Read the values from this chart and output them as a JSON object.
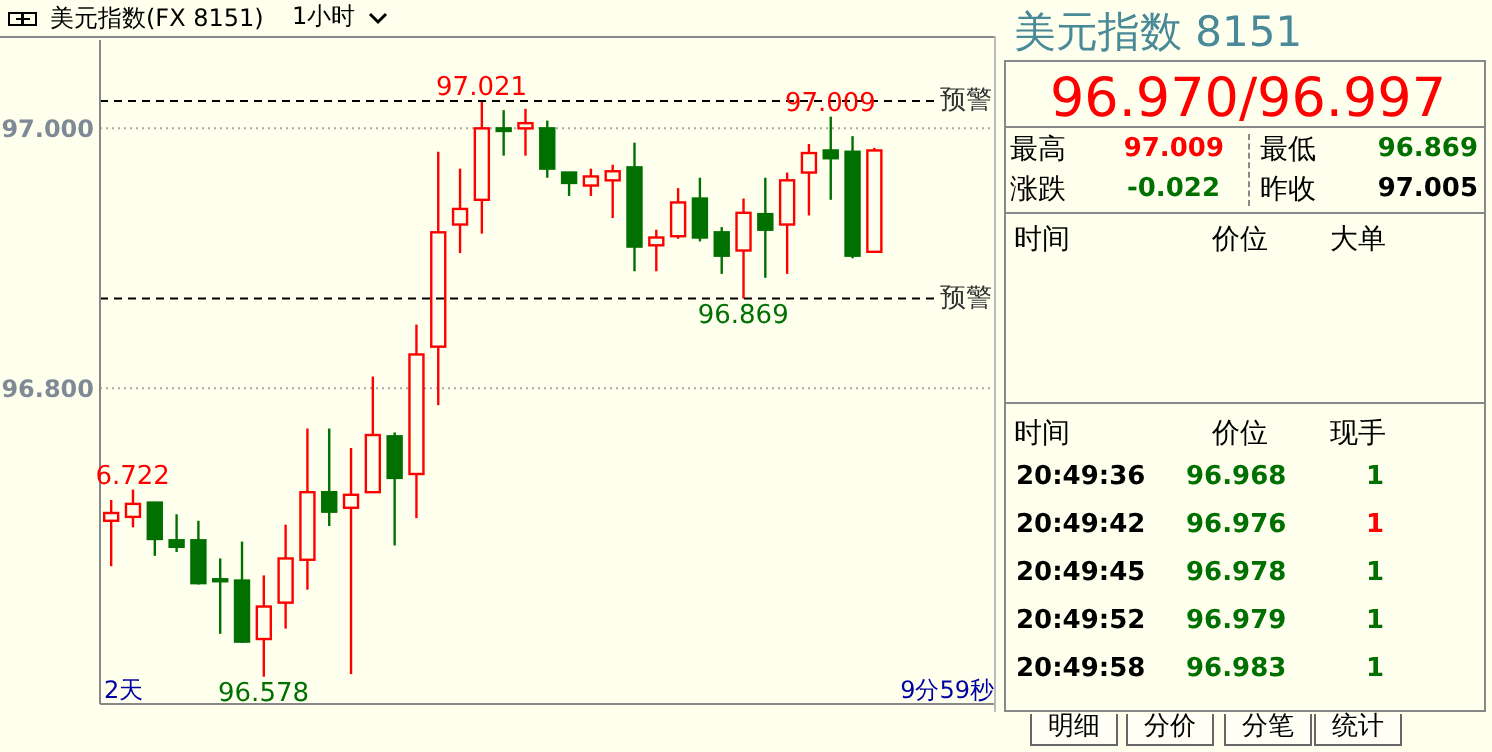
{
  "chart_data": {
    "type": "candlestick",
    "title": "美元指数(FX 8151)",
    "categories": [
      null,
      null,
      null,
      null,
      null,
      null,
      null,
      null,
      null,
      null,
      null,
      null,
      null,
      null,
      null,
      null,
      null,
      null,
      null,
      null,
      null,
      null,
      null,
      null,
      null,
      null,
      null,
      null,
      null,
      null,
      null,
      null,
      null,
      null,
      null,
      null,
      null,
      null,
      null,
      null,
      null
    ],
    "ohlc": [
      [
        96.698,
        96.714,
        96.663,
        96.704
      ],
      [
        96.701,
        96.722,
        96.693,
        96.711
      ],
      [
        96.712,
        96.712,
        96.671,
        96.684
      ],
      [
        96.683,
        96.703,
        96.674,
        96.678
      ],
      [
        96.683,
        96.698,
        96.649,
        96.65
      ],
      [
        96.653,
        96.669,
        96.611,
        96.652
      ],
      [
        96.652,
        96.682,
        96.604,
        96.605
      ],
      [
        96.607,
        96.656,
        96.578,
        96.632
      ],
      [
        96.635,
        96.695,
        96.615,
        96.669
      ],
      [
        96.668,
        96.769,
        96.645,
        96.72
      ],
      [
        96.72,
        96.769,
        96.694,
        96.705
      ],
      [
        96.708,
        96.754,
        96.58,
        96.718
      ],
      [
        96.72,
        96.809,
        96.72,
        96.764
      ],
      [
        96.763,
        96.766,
        96.679,
        96.731
      ],
      [
        96.734,
        96.849,
        96.7,
        96.826
      ],
      [
        96.832,
        96.982,
        96.787,
        96.92
      ],
      [
        96.926,
        96.969,
        96.904,
        96.938
      ],
      [
        96.945,
        97.021,
        96.919,
        97.0
      ],
      [
        97.0,
        97.014,
        96.979,
        96.998
      ],
      [
        97.0,
        97.015,
        96.979,
        97.004
      ],
      [
        97.0,
        97.006,
        96.962,
        96.969
      ],
      [
        96.966,
        96.966,
        96.948,
        96.958
      ],
      [
        96.956,
        96.969,
        96.948,
        96.963
      ],
      [
        96.96,
        96.972,
        96.931,
        96.967
      ],
      [
        96.97,
        96.989,
        96.89,
        96.909
      ],
      [
        96.91,
        96.922,
        96.89,
        96.916
      ],
      [
        96.917,
        96.954,
        96.915,
        96.943
      ],
      [
        96.946,
        96.962,
        96.913,
        96.916
      ],
      [
        96.92,
        96.924,
        96.888,
        96.902
      ],
      [
        96.906,
        96.946,
        96.869,
        96.935
      ],
      [
        96.934,
        96.962,
        96.885,
        96.922
      ],
      [
        96.926,
        96.966,
        96.888,
        96.96
      ],
      [
        96.966,
        96.988,
        96.933,
        96.981
      ],
      [
        96.983,
        97.009,
        96.945,
        96.977
      ],
      [
        96.982,
        96.994,
        96.9,
        96.902
      ],
      [
        96.905,
        96.985,
        96.905,
        96.983
      ],
      null,
      null,
      null,
      null,
      null
    ],
    "colors": [
      "#ff0000",
      "#ff0000",
      "#007000",
      "#007000",
      "#007000",
      "#007000",
      "#007000",
      "#ff0000",
      "#ff0000",
      "#ff0000",
      "#007000",
      "#ff0000",
      "#ff0000",
      "#007000",
      "#ff0000",
      "#ff0000",
      "#ff0000",
      "#ff0000",
      "#007000",
      "#ff0000",
      "#007000",
      "#007000",
      "#ff0000",
      "#ff0000",
      "#007000",
      "#ff0000",
      "#ff0000",
      "#007000",
      "#007000",
      "#ff0000",
      "#007000",
      "#ff0000",
      "#ff0000",
      "#007000",
      "#007000",
      "#ff0000",
      null,
      null,
      null,
      null,
      null
    ],
    "ylim": [
      96.557,
      97.068
    ],
    "yticks": [
      {
        "value": 96.8,
        "label": "96.800"
      },
      {
        "value": 97,
        "label": "97.000"
      }
    ],
    "grid": "y",
    "ref_lines": [
      {
        "axis": "y",
        "value": 97.021,
        "label": "预警",
        "line_style": "dashed",
        "color": "#000000"
      },
      {
        "axis": "y",
        "value": 96.869,
        "label": "预警",
        "line_style": "dashed",
        "color": "#000000"
      }
    ],
    "annotations": [
      "1小时",
      "2天",
      "9分59秒",
      "美元指数 8151",
      "96.970/96.997",
      "最高",
      "97.009",
      "最低",
      "96.869",
      "涨跌",
      "-0.022",
      "昨收",
      "97.005",
      "时间",
      "价位",
      "大单",
      "时间",
      "价位",
      "现手",
      "20:49:36",
      "96.968",
      "1",
      "20:49:42",
      "96.976",
      "1",
      "20:49:45",
      "96.978",
      "1",
      "20:49:52",
      "96.979",
      "1",
      "20:49:58",
      "96.983",
      "1",
      "明细",
      "分价",
      "分笔",
      "统计",
      {
        "text": "97.021",
        "y": 97.021
      },
      {
        "text": "97.009",
        "y": 97.009
      },
      {
        "text": "96.869",
        "y": 96.869
      },
      {
        "text": "96.578",
        "y": 96.578
      },
      {
        "text": "6.722",
        "y": 96.722
      }
    ]
  }
}
